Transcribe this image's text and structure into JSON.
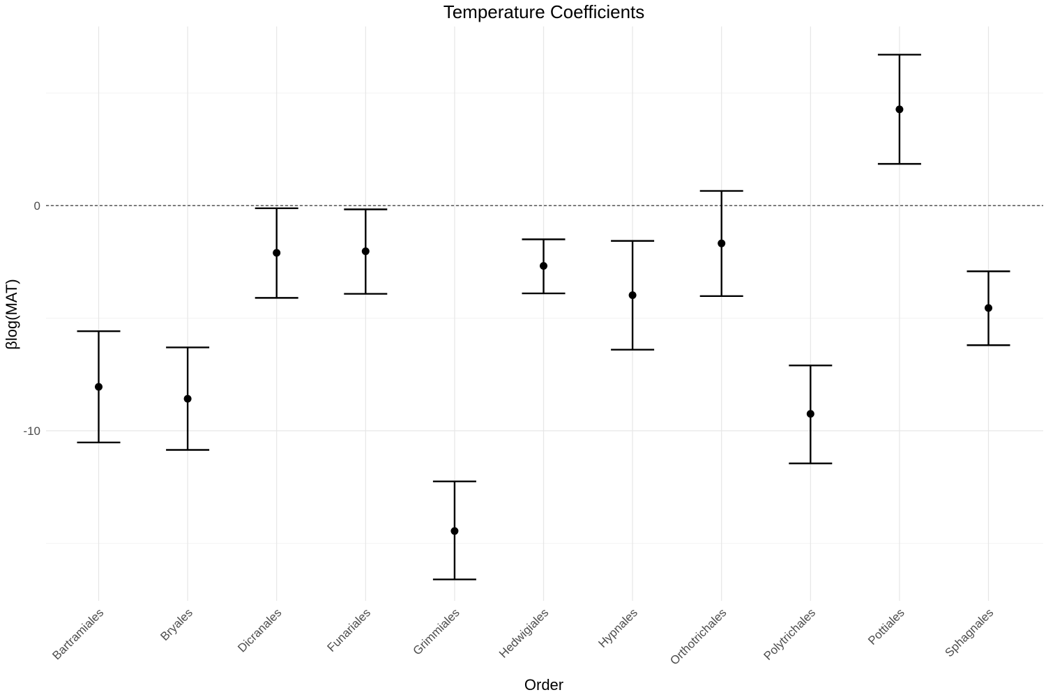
{
  "chart_data": {
    "type": "errorbar",
    "title": "Temperature Coefficients",
    "xlabel": "Order",
    "ylabel": "βlog(MAT)",
    "categories": [
      "Bartramiales",
      "Bryales",
      "Dicranales",
      "Funariales",
      "Grimmiales",
      "Hedwigiales",
      "Hypnales",
      "Orthotrichales",
      "Polytrichales",
      "Pottiales",
      "Sphagnales"
    ],
    "estimates": [
      -8.05,
      -8.58,
      -2.1,
      -2.03,
      -14.45,
      -2.68,
      -3.98,
      -1.68,
      -9.25,
      4.27,
      -4.55
    ],
    "lower": [
      -10.52,
      -10.85,
      -4.1,
      -3.92,
      -16.6,
      -3.9,
      -6.4,
      -4.02,
      -11.45,
      1.85,
      -6.2
    ],
    "upper": [
      -5.58,
      -6.3,
      -0.12,
      -0.17,
      -12.25,
      -1.5,
      -1.57,
      0.65,
      -7.1,
      6.7,
      -2.92
    ],
    "ylim": [
      -17.55,
      7.95
    ],
    "yticks": [
      0,
      -10
    ],
    "ytick_labels": [
      "0",
      "-10"
    ],
    "reference_line": 0,
    "grid": true,
    "legend": "none",
    "colors": {
      "points": "#000000",
      "errorbars": "#000000",
      "reference_line": "#555555",
      "grid": "#e6e6e6"
    }
  }
}
